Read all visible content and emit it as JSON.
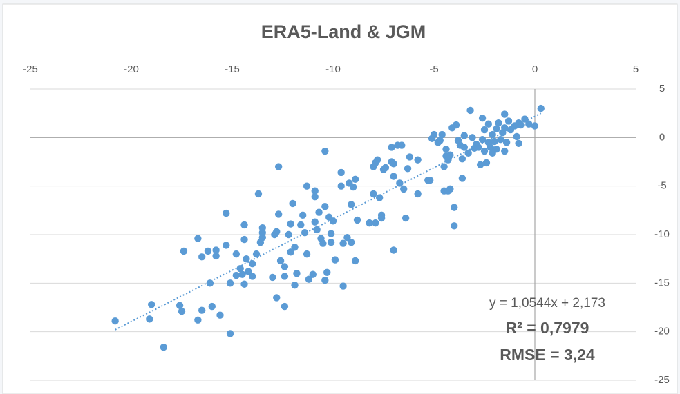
{
  "chart_data": {
    "type": "scatter",
    "title": "ERA5-Land & JGM",
    "color": "#5b9bd5",
    "x": [
      -20.8,
      -19.1,
      -19,
      -18.4,
      -17.6,
      -17.5,
      -17.4,
      -16.7,
      -16.7,
      -16.5,
      -16.5,
      -16.2,
      -16.1,
      -16,
      -15.8,
      -15.8,
      -15.6,
      -15.3,
      -15.3,
      -15.1,
      -15.1,
      -14.8,
      -14.8,
      -14.6,
      -14.5,
      -14.4,
      -14.4,
      -14.4,
      -14.3,
      -14.2,
      -14,
      -14,
      -13.8,
      -13.7,
      -13.6,
      -13.5,
      -13.5,
      -13.5,
      -13,
      -12.9,
      -12.8,
      -12.8,
      -12.7,
      -12.7,
      -12.6,
      -12.4,
      -12.4,
      -12.4,
      -12.2,
      -12.1,
      -12.1,
      -12,
      -11.9,
      -11.9,
      -11.8,
      -11.6,
      -11.5,
      -11.4,
      -11.3,
      -11.3,
      -11.2,
      -11,
      -10.9,
      -10.9,
      -10.9,
      -10.8,
      -10.7,
      -10.6,
      -10.5,
      -10.4,
      -10.4,
      -10.4,
      -10.3,
      -10.2,
      -10.1,
      -10.1,
      -10,
      -9.9,
      -9.6,
      -9.6,
      -9.5,
      -9.5,
      -9.3,
      -9.2,
      -9.1,
      -9.1,
      -9,
      -8.9,
      -8.8,
      -8.9,
      -8.2,
      -8,
      -8,
      -7.9,
      -7.9,
      -7.8,
      -7.7,
      -7.6,
      -7.6,
      -7.5,
      -7.4,
      -7.1,
      -7.1,
      -7,
      -7,
      -7,
      -6.8,
      -6.7,
      -6.6,
      -6.5,
      -6.4,
      -6.3,
      -6.2,
      -5.8,
      -5.8,
      -5.3,
      -5.2,
      -5.1,
      -5,
      -4.8,
      -4.7,
      -4.6,
      -4.5,
      -4.5,
      -4.4,
      -4.4,
      -4.3,
      -4.3,
      -4.2,
      -4.2,
      -4.1,
      -4,
      -4,
      -3.9,
      -3.8,
      -3.7,
      -3.6,
      -3.6,
      -3.5,
      -3.5,
      -3.3,
      -3.2,
      -3.1,
      -3,
      -2.9,
      -2.8,
      -2.7,
      -2.6,
      -2.6,
      -2.5,
      -2.5,
      -2.4,
      -2.3,
      -2.3,
      -2.2,
      -2.1,
      -2.1,
      -2,
      -1.9,
      -1.9,
      -1.8,
      -1.7,
      -1.6,
      -1.5,
      -1.5,
      -1.5,
      -1.4,
      -1.3,
      -1.2,
      -1,
      -0.9,
      -0.8,
      -0.8,
      -0.7,
      -0.5,
      -0.3,
      0,
      0.3
    ],
    "values": [
      -18.9,
      -18.7,
      -17.2,
      -21.6,
      -17.3,
      -17.9,
      -11.7,
      -10.4,
      -18.8,
      -12.3,
      -17.8,
      -11.7,
      -15,
      -17.4,
      -11.6,
      -12.2,
      -18.3,
      -7.8,
      -11.1,
      -15,
      -20.2,
      -12,
      -14.2,
      -13.5,
      -14.1,
      -9,
      -10.5,
      -15.1,
      -12.5,
      -13.8,
      -13,
      -14.3,
      -12,
      -5.8,
      -10.8,
      -9.3,
      -9.8,
      -10.3,
      -14.4,
      -10,
      -9.7,
      -16.5,
      -3,
      -7.9,
      -12.7,
      -13.3,
      -14.3,
      -17.4,
      -10,
      -11.8,
      -8.9,
      -6.8,
      -15.2,
      -11.3,
      -14,
      -9,
      -8,
      -9.8,
      -5,
      -12,
      -14.6,
      -14.1,
      -5.5,
      -6.1,
      -8.7,
      -9.5,
      -7.7,
      -10.4,
      -10.9,
      -1.4,
      -7.1,
      -14.7,
      -13.9,
      -8.2,
      -9.9,
      -10.8,
      -8.6,
      -12.6,
      -3.6,
      -5,
      -10.9,
      -15.3,
      -10.3,
      -4.7,
      -6.9,
      -10.8,
      -5.1,
      -12.7,
      -8.5,
      -4.3,
      -8.8,
      -3,
      -5.8,
      -2.6,
      -8.8,
      -2.3,
      -6.2,
      -8,
      -8.3,
      -3.3,
      -3.1,
      -1,
      -2.5,
      -2.7,
      -4,
      -11.6,
      -0.8,
      -4.7,
      -0.8,
      -5.3,
      -8.3,
      -3.2,
      -2,
      -2.3,
      -5.8,
      -4.4,
      -4.4,
      -0.1,
      0.3,
      -0.5,
      -0.3,
      0.3,
      -3,
      -5.5,
      -1.9,
      -1.2,
      -2.3,
      -5.5,
      -1.8,
      -5.3,
      1,
      -7.2,
      -9.1,
      1.3,
      -0.3,
      -0.8,
      -2.2,
      -4.2,
      -1,
      0.2,
      -1.6,
      2.8,
      0,
      -1.1,
      -0.7,
      -1,
      -2.8,
      -0.2,
      2,
      0.8,
      -1.4,
      -2.6,
      -0.5,
      1.4,
      -1,
      0.3,
      -1.6,
      -0.4,
      0.9,
      -1.2,
      1.5,
      -0.2,
      0.5,
      1,
      2.4,
      -1.4,
      -0.5,
      1.7,
      0.8,
      1.2,
      0.1,
      1.5,
      -0.6,
      1.3,
      1.9,
      1.4,
      1.2,
      3
    ],
    "trendline": {
      "x": [
        -20.8,
        0.3
      ],
      "values": [
        -19.8,
        2.5
      ]
    },
    "annotations": [
      "y = 1,0544x + 2,173",
      "R² = 0,7979",
      "RMSE = 3,24"
    ],
    "xlim": [
      -25,
      5
    ],
    "xticks": [
      -25,
      -20,
      -15,
      -10,
      -5,
      0,
      5
    ],
    "ylim": [
      -25,
      5
    ],
    "yticks": [
      5,
      0,
      -5,
      -10,
      -15,
      -20,
      -25
    ],
    "grid": true
  }
}
